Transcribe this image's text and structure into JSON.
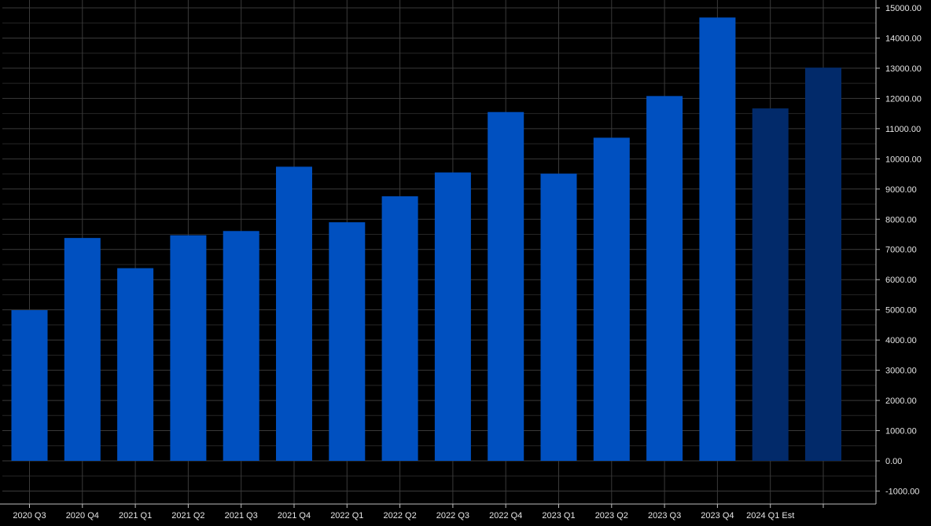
{
  "chart_data": {
    "type": "bar",
    "categories": [
      "2020 Q3",
      "2020 Q4",
      "2021 Q1",
      "2021 Q2",
      "2021 Q3",
      "2021 Q4",
      "2022 Q1",
      "2022 Q2",
      "2022 Q3",
      "2022 Q4",
      "2023 Q1",
      "2023 Q2",
      "2023 Q3",
      "2023 Q4",
      "2024 Q1 Est",
      ""
    ],
    "values": [
      4990,
      7380,
      6380,
      7470,
      7610,
      9740,
      7900,
      8760,
      9550,
      11550,
      9510,
      10700,
      12080,
      14680,
      11670,
      13020
    ],
    "estimate": [
      false,
      false,
      false,
      false,
      false,
      false,
      false,
      false,
      false,
      false,
      false,
      false,
      false,
      false,
      true,
      true
    ],
    "title": "",
    "xlabel": "",
    "ylabel": "",
    "ylim": [
      -1000,
      15000
    ],
    "yticks": [
      15000,
      14000,
      13000,
      12000,
      11000,
      10000,
      9000,
      8000,
      7000,
      6000,
      5000,
      4000,
      3000,
      2000,
      1000,
      0,
      -1000
    ],
    "ytick_labels": [
      "15000.00",
      "14000.00",
      "13000.00",
      "12000.00",
      "11000.00",
      "10000.00",
      "9000.00",
      "8000.00",
      "7000.00",
      "6000.00",
      "5000.00",
      "4000.00",
      "3000.00",
      "2000.00",
      "1000.00",
      "0.00",
      "-1000.00"
    ],
    "y_axis_position": "right",
    "grid": true,
    "legend": "none",
    "colors": {
      "background": "#000000",
      "bar": "#0050c0",
      "bar_estimate": "#022a6a",
      "grid": "#3a3a3a",
      "axis": "#bdbdbd",
      "text": "#e6e6e6"
    }
  }
}
